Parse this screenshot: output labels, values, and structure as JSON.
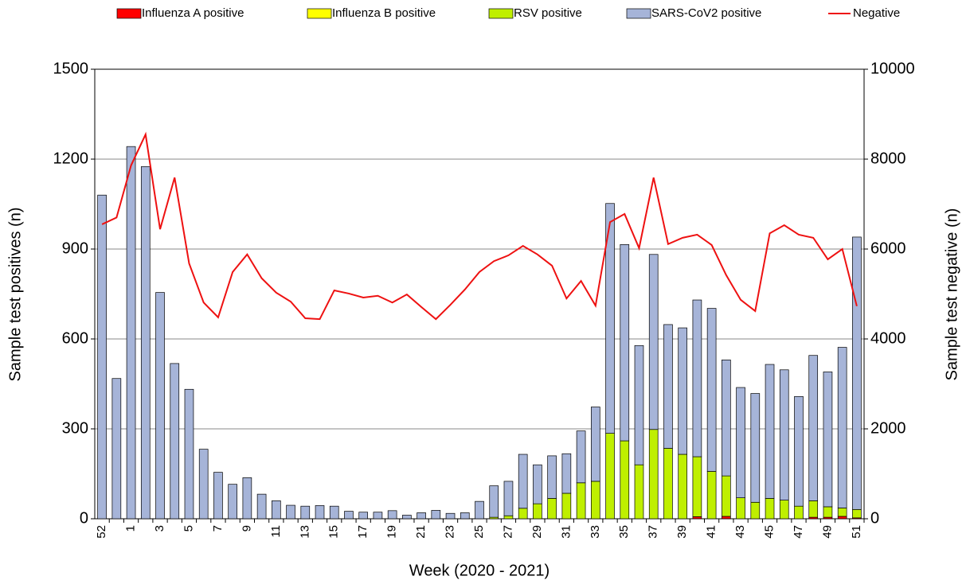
{
  "chart_data": {
    "type": "bar",
    "stacked": true,
    "categories": [
      "52",
      null,
      "1",
      null,
      "3",
      null,
      "5",
      null,
      "7",
      null,
      "9",
      null,
      "11",
      null,
      "13",
      null,
      "15",
      null,
      "17",
      null,
      "19",
      null,
      "21",
      null,
      "23",
      null,
      "25",
      null,
      "27",
      null,
      "29",
      null,
      "31",
      null,
      "33",
      null,
      "35",
      null,
      "37",
      null,
      "39",
      null,
      "41",
      null,
      "43",
      null,
      "45",
      null,
      "47",
      null,
      "49",
      null,
      "51"
    ],
    "x_label": "Week (2020 - 2021)",
    "y_label": "Sample test positives (n)",
    "y2_label": "Sample test negative (n)",
    "ylim": [
      0,
      1500
    ],
    "yticks": [
      0,
      300,
      600,
      900,
      1200,
      1500
    ],
    "y2lim": [
      0,
      10000
    ],
    "y2ticks": [
      0,
      2000,
      4000,
      6000,
      8000,
      10000
    ],
    "grid": true,
    "legend": "top",
    "series": [
      {
        "name": "Influenza A positive",
        "color": "#ff0000",
        "values": [
          0,
          0,
          0,
          0,
          0,
          0,
          0,
          0,
          0,
          0,
          0,
          0,
          0,
          0,
          0,
          0,
          0,
          0,
          0,
          0,
          0,
          0,
          0,
          0,
          0,
          0,
          0,
          0,
          0,
          0,
          0,
          0,
          0,
          0,
          0,
          0,
          0,
          0,
          0,
          0,
          0,
          7,
          0,
          8,
          0,
          0,
          0,
          0,
          0,
          5,
          5,
          8,
          3
        ]
      },
      {
        "name": "Influenza B positive",
        "color": "#ffff00",
        "values": [
          0,
          0,
          0,
          0,
          0,
          0,
          0,
          0,
          0,
          0,
          0,
          0,
          0,
          0,
          0,
          0,
          0,
          0,
          0,
          0,
          0,
          0,
          0,
          0,
          0,
          0,
          0,
          0,
          0,
          0,
          0,
          0,
          0,
          0,
          0,
          0,
          0,
          0,
          0,
          0,
          0,
          0,
          0,
          0,
          0,
          0,
          0,
          0,
          0,
          0,
          0,
          0,
          0
        ]
      },
      {
        "name": "RSV positive",
        "color": "#bfef00",
        "values": [
          0,
          0,
          0,
          0,
          0,
          0,
          0,
          0,
          0,
          0,
          0,
          0,
          0,
          0,
          0,
          0,
          0,
          0,
          0,
          0,
          0,
          0,
          0,
          0,
          0,
          0,
          0,
          5,
          10,
          35,
          50,
          68,
          85,
          120,
          125,
          285,
          260,
          180,
          298,
          235,
          215,
          200,
          158,
          135,
          70,
          55,
          68,
          62,
          42,
          55,
          35,
          28,
          28
        ]
      },
      {
        "name": "SARS-CoV2 positive",
        "color": "#a6b4d8",
        "values": [
          1080,
          468,
          1242,
          1175,
          755,
          518,
          432,
          232,
          155,
          115,
          137,
          82,
          60,
          45,
          42,
          44,
          42,
          25,
          22,
          22,
          27,
          12,
          20,
          28,
          18,
          20,
          58,
          105,
          115,
          180,
          130,
          142,
          132,
          173,
          248,
          767,
          655,
          398,
          584,
          413,
          422,
          523,
          544,
          387,
          368,
          363,
          447,
          435,
          366,
          485,
          450,
          536,
          909
        ]
      },
      {
        "name": "Negative",
        "color": "#ee1111",
        "type": "line",
        "axis": "y2",
        "values": [
          6550,
          6700,
          7860,
          8550,
          6440,
          7590,
          5680,
          4810,
          4480,
          5490,
          5880,
          5350,
          5030,
          4830,
          4460,
          4440,
          5080,
          5010,
          4920,
          4960,
          4810,
          4990,
          4710,
          4440,
          4760,
          5100,
          5490,
          5730,
          5860,
          6070,
          5880,
          5630,
          4900,
          5290,
          4740,
          6600,
          6780,
          6020,
          7590,
          6110,
          6250,
          6320,
          6090,
          5420,
          4870,
          4620,
          6350,
          6530,
          6320,
          6250,
          5770,
          6000,
          4730
        ]
      }
    ]
  }
}
